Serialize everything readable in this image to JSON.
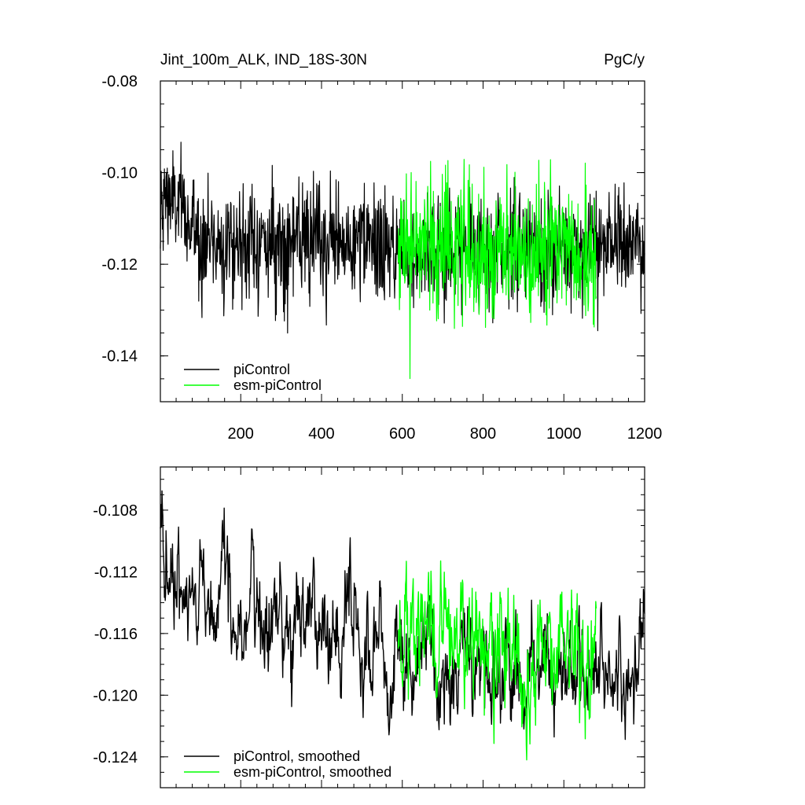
{
  "colors": {
    "picontrol": "#000000",
    "esm_picontrol": "#00ff00",
    "frame": "#000000"
  },
  "chart_data": [
    {
      "type": "line",
      "title": "Jint_100m_ALK, IND_18S-30N",
      "units": "PgC/y",
      "xlim": [
        1,
        1200
      ],
      "ylim": [
        -0.15,
        -0.08
      ],
      "xticks": [
        200,
        400,
        600,
        800,
        1000,
        1200
      ],
      "yticks": [
        -0.14,
        -0.12,
        -0.1,
        -0.08
      ],
      "ytick_labels": [
        "-0.14",
        "-0.12",
        "-0.10",
        "-0.08"
      ],
      "xtick_labels": [
        "200",
        "400",
        "600",
        "800",
        "1000",
        "1200"
      ],
      "legend": [
        "piControl",
        "esm-piControl"
      ],
      "legend_position": "bottom-left",
      "series": [
        {
          "name": "piControl",
          "x_start": 1,
          "x_end": 1200,
          "mean": -0.1145,
          "std": 0.0062,
          "anchors_x": [
            1,
            15,
            100,
            300,
            500,
            600,
            800,
            1000,
            1100,
            1200
          ],
          "anchors_y": [
            -0.1125,
            -0.104,
            -0.1145,
            -0.1155,
            -0.1155,
            -0.117,
            -0.1165,
            -0.1175,
            -0.116,
            -0.115
          ]
        },
        {
          "name": "esm-piControl",
          "x_start": 590,
          "x_end": 1080,
          "mean": -0.1165,
          "std": 0.0075,
          "anchors_x": [
            590,
            800,
            1080
          ],
          "anchors_y": [
            -0.115,
            -0.117,
            -0.117
          ]
        }
      ]
    },
    {
      "type": "line",
      "xlim": [
        1,
        1200
      ],
      "ylim": [
        -0.126,
        -0.1052
      ],
      "xticks": [
        200,
        400,
        600,
        800,
        1000,
        1200
      ],
      "yticks": [
        -0.124,
        -0.12,
        -0.116,
        -0.112,
        -0.108
      ],
      "ytick_labels": [
        "-0.124",
        "-0.120",
        "-0.116",
        "-0.112",
        "-0.108"
      ],
      "legend": [
        "piControl, smoothed",
        "esm-piControl, smoothed"
      ],
      "legend_position": "bottom-left",
      "series": [
        {
          "name": "piControl, smoothed",
          "x_start": 1,
          "x_end": 1200,
          "std": 0.0018,
          "anchors_x": [
            1,
            20,
            60,
            150,
            300,
            400,
            500,
            580,
            650,
            700,
            800,
            900,
            1000,
            1100,
            1160,
            1200
          ],
          "anchors_y": [
            -0.1095,
            -0.111,
            -0.1125,
            -0.1135,
            -0.115,
            -0.1155,
            -0.116,
            -0.1185,
            -0.1175,
            -0.119,
            -0.1175,
            -0.119,
            -0.1185,
            -0.1185,
            -0.1195,
            -0.115
          ]
        },
        {
          "name": "esm-piControl, smoothed",
          "x_start": 590,
          "x_end": 1080,
          "std": 0.0022,
          "anchors_x": [
            590,
            700,
            800,
            900,
            1000,
            1080
          ],
          "anchors_y": [
            -0.1155,
            -0.1165,
            -0.1165,
            -0.1175,
            -0.117,
            -0.1175
          ]
        }
      ]
    }
  ]
}
